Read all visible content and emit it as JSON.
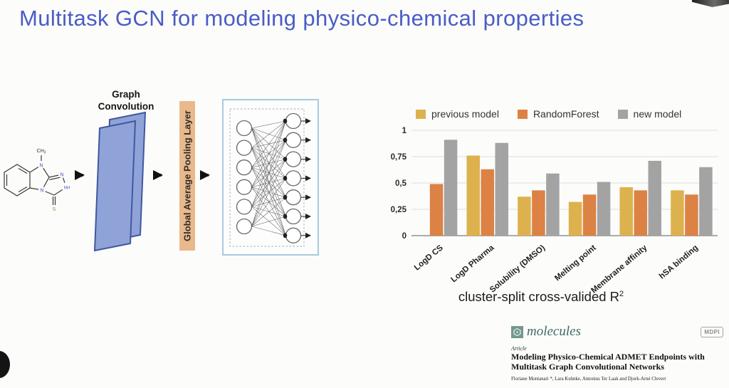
{
  "slide": {
    "title": "Multitask GCN for modeling physico-chemical properties",
    "title_color": "#4a5cc5"
  },
  "diagram": {
    "graph_convolution_label_line1": "Graph",
    "graph_convolution_label_line2": "Convolution",
    "pooling_label": "Global Average Pooling Layer",
    "molecule": {
      "methyl_base": "CH",
      "methyl_sub": "3",
      "n_top": "N",
      "n_bottom": "N",
      "n_right": "N",
      "nh": "NH",
      "sulfur": "S"
    },
    "nn": {
      "left_nodes": 6,
      "right_nodes": 7
    },
    "colors": {
      "layer_fill": "#8fa3d9",
      "layer_stroke": "#41589e",
      "pooling_fill": "#e9b98c",
      "nn_box_stroke": "#a9cadd"
    }
  },
  "chart_data": {
    "type": "bar",
    "title": "",
    "categories": [
      "LogD CS",
      "LogD Pharma",
      "Solubility (DMSO)",
      "Melting point",
      "Membrane affinity",
      "hSA binding"
    ],
    "series": [
      {
        "name": "previous model",
        "color": "#ddb14d",
        "values": [
          null,
          0.76,
          0.37,
          0.32,
          0.46,
          0.43
        ]
      },
      {
        "name": "RandomForest",
        "color": "#dc8244",
        "values": [
          0.49,
          0.63,
          0.43,
          0.39,
          0.43,
          0.39
        ]
      },
      {
        "name": "new model",
        "color": "#a3a3a3",
        "values": [
          0.91,
          0.88,
          0.59,
          0.51,
          0.71,
          0.65
        ]
      }
    ],
    "ylim": [
      0,
      1
    ],
    "ytick_values": [
      0,
      0.25,
      0.5,
      0.75,
      1
    ],
    "ytick_labels": [
      "0",
      "0,25",
      "0,5",
      "0,75",
      "1"
    ],
    "grid": true,
    "legend_position": "top",
    "xlabel": "cluster-split cross-valided R²",
    "xlabel_base": "cluster-split cross-valided R",
    "xlabel_sup": "2",
    "ylabel": ""
  },
  "paper": {
    "journal": "molecules",
    "publisher_badge": "MDPI",
    "article_label": "Article",
    "title": "Modeling Physico-Chemical ADMET Endpoints with Multitask Graph Convolutional Networks",
    "authors": "Floriane Montanari *, Lara Kuhnke, Antonius Ter Laak and Djork-Arné Clevert"
  }
}
